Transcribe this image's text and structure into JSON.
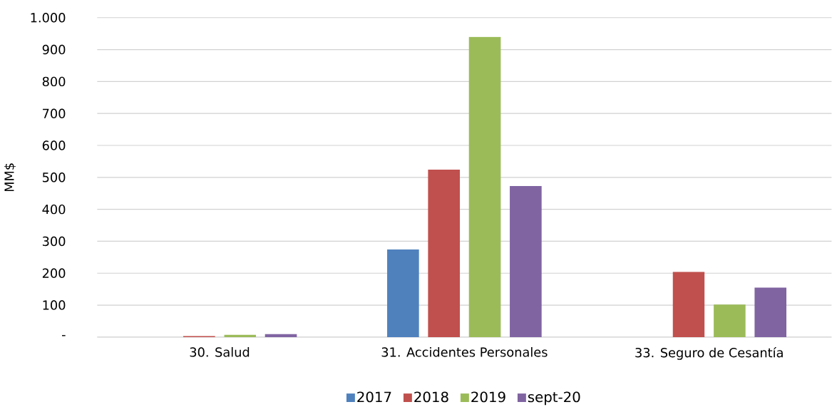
{
  "chart_data": {
    "type": "bar",
    "ylabel": "MM$",
    "categories": [
      "30. Salud",
      "31. Accidentes Personales",
      "33. Seguro de Cesantía"
    ],
    "series": [
      {
        "name": "2017",
        "color": "#4f81bd",
        "values": [
          0,
          274,
          0
        ]
      },
      {
        "name": "2018",
        "color": "#c0504d",
        "values": [
          3,
          524,
          204
        ]
      },
      {
        "name": "2019",
        "color": "#9bbb59",
        "values": [
          7,
          940,
          102
        ]
      },
      {
        "name": "sept-20",
        "color": "#8064a2",
        "values": [
          9,
          473,
          155
        ]
      }
    ],
    "ylim": [
      0,
      1000
    ],
    "yticks": [
      {
        "value": 0,
        "label": "-"
      },
      100,
      200,
      300,
      400,
      500,
      600,
      700,
      800,
      900,
      {
        "value": 1000,
        "label": "1.000"
      }
    ],
    "grid": "y",
    "legend": "bottom"
  }
}
